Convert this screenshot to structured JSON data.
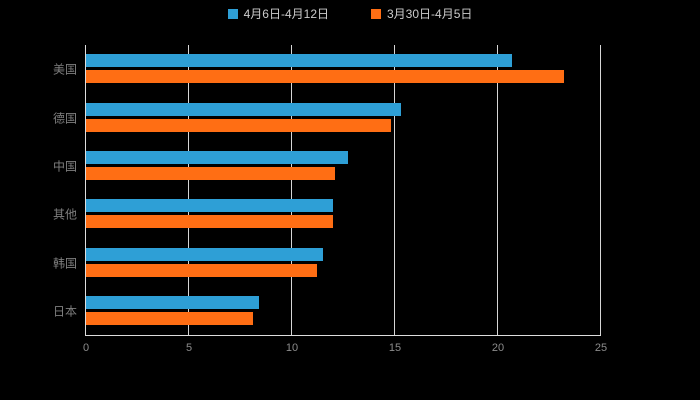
{
  "chart_data": {
    "type": "bar",
    "orientation": "horizontal",
    "title": "",
    "xlabel": "",
    "ylabel": "",
    "categories": [
      "美国",
      "德国",
      "中国",
      "其他",
      "韩国",
      "日本"
    ],
    "series": [
      {
        "name": "4月6日-4月12日",
        "color": "#2E9FD6",
        "values": [
          20.7,
          15.3,
          12.7,
          12.0,
          11.5,
          8.4
        ]
      },
      {
        "name": "3月30日-4月5日",
        "color": "#FF6E14",
        "values": [
          23.2,
          14.8,
          12.1,
          12.0,
          11.2,
          8.1
        ]
      }
    ],
    "xlim": [
      0,
      25
    ],
    "xticks": [
      0,
      5,
      10,
      15,
      20,
      25
    ],
    "grid": true,
    "legend_position": "top",
    "background": "#000000"
  },
  "legend": {
    "series1_label": "4月6日-4月12日",
    "series2_label": "3月30日-4月5日"
  },
  "colors": {
    "series1": "#2E9FD6",
    "series2": "#FF6E14",
    "background": "#000000",
    "gridline": "#d6d6d6",
    "axis": "#dddddd",
    "category_label": "#7f7f7f",
    "tick_label": "#8c8c8c",
    "legend_label": "#cccccc"
  }
}
